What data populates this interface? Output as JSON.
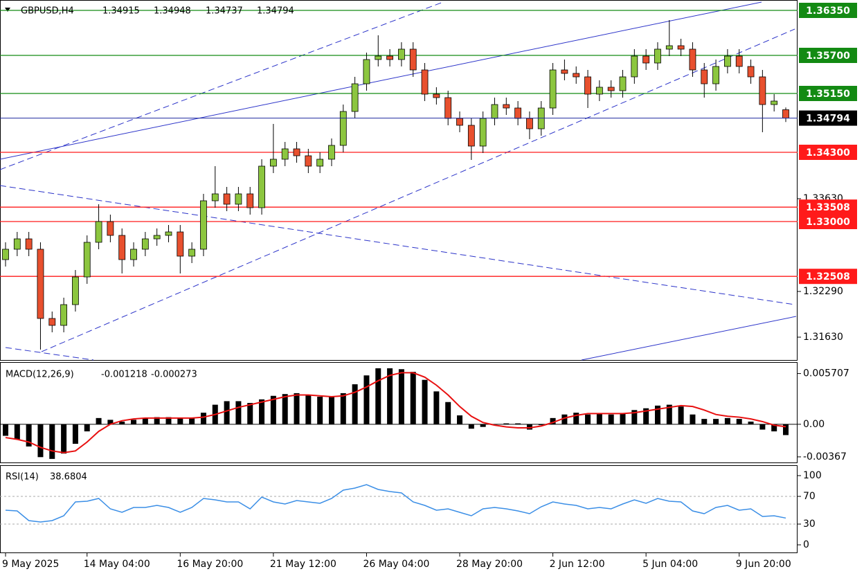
{
  "chart_data": [
    {
      "type": "candlestick",
      "title": "GBPUSD,H4",
      "categories": [
        "9 May 2025",
        null,
        null,
        null,
        null,
        null,
        null,
        "14 May 04:00",
        null,
        null,
        null,
        null,
        null,
        null,
        null,
        "16 May 20:00",
        null,
        null,
        null,
        null,
        null,
        null,
        null,
        "21 May 12:00",
        null,
        null,
        null,
        null,
        null,
        null,
        null,
        "26 May 04:00",
        null,
        null,
        null,
        null,
        null,
        null,
        null,
        "28 May 20:00",
        null,
        null,
        null,
        null,
        null,
        null,
        null,
        "2 Jun 12:00",
        null,
        null,
        null,
        null,
        null,
        null,
        null,
        "5 Jun 04:00",
        null,
        null,
        null,
        null,
        null,
        null,
        null,
        "9 Jun 20:00",
        null,
        null,
        null,
        null
      ],
      "open": [
        1.3275,
        1.329,
        1.3305,
        1.329,
        1.319,
        1.318,
        1.321,
        1.325,
        1.33,
        1.333,
        1.331,
        1.3275,
        1.329,
        1.3305,
        1.331,
        1.3315,
        1.328,
        1.329,
        1.336,
        1.337,
        1.3355,
        1.337,
        1.335,
        1.341,
        1.342,
        1.3435,
        1.3425,
        1.341,
        1.342,
        1.344,
        1.3489,
        1.3529,
        1.3564,
        1.3569,
        1.3564,
        1.3579,
        1.3549,
        1.3514,
        1.3509,
        1.3479,
        1.3469,
        1.3439,
        1.3479,
        1.3499,
        1.3494,
        1.3479,
        1.3464,
        1.3494,
        1.3549,
        1.3544,
        1.3539,
        1.3514,
        1.3524,
        1.3519,
        1.3539,
        1.3569,
        1.3559,
        1.3579,
        1.3584,
        1.3579,
        1.3549,
        1.3529,
        1.3554,
        1.3569,
        1.3554,
        1.3539,
        1.3499,
        1.34915
      ],
      "high": [
        1.33,
        1.3315,
        1.3315,
        1.33,
        1.32,
        1.322,
        1.326,
        1.331,
        1.3355,
        1.334,
        1.332,
        1.33,
        1.3315,
        1.332,
        1.3325,
        1.3325,
        1.33,
        1.337,
        1.341,
        1.338,
        1.338,
        1.338,
        1.342,
        1.3471,
        1.3445,
        1.3445,
        1.3435,
        1.343,
        1.345,
        1.3499,
        1.3539,
        1.3574,
        1.3599,
        1.3579,
        1.3589,
        1.3589,
        1.3559,
        1.3524,
        1.3519,
        1.3489,
        1.3479,
        1.3489,
        1.3509,
        1.3509,
        1.3504,
        1.3489,
        1.3504,
        1.3559,
        1.3564,
        1.3554,
        1.3549,
        1.3534,
        1.3534,
        1.3549,
        1.3579,
        1.3579,
        1.3589,
        1.3621,
        1.3594,
        1.3589,
        1.3559,
        1.3564,
        1.3579,
        1.3579,
        1.3564,
        1.3549,
        1.3514,
        1.34948
      ],
      "low": [
        1.3265,
        1.328,
        1.328,
        1.3145,
        1.317,
        1.317,
        1.32,
        1.324,
        1.329,
        1.33,
        1.3255,
        1.3265,
        1.328,
        1.3295,
        1.33,
        1.3255,
        1.327,
        1.328,
        1.335,
        1.3345,
        1.3345,
        1.334,
        1.334,
        1.34,
        1.341,
        1.3415,
        1.34,
        1.34,
        1.341,
        1.343,
        1.3479,
        1.3519,
        1.3554,
        1.3554,
        1.3554,
        1.3539,
        1.3504,
        1.3499,
        1.3469,
        1.3459,
        1.3419,
        1.3429,
        1.3469,
        1.3484,
        1.3469,
        1.3449,
        1.3454,
        1.3484,
        1.3534,
        1.3529,
        1.3494,
        1.3504,
        1.3509,
        1.3509,
        1.3529,
        1.3549,
        1.3549,
        1.3569,
        1.3569,
        1.3539,
        1.3509,
        1.3519,
        1.3544,
        1.3544,
        1.3529,
        1.3459,
        1.3489,
        1.34737
      ],
      "close": [
        1.329,
        1.3305,
        1.329,
        1.319,
        1.318,
        1.321,
        1.325,
        1.33,
        1.333,
        1.331,
        1.3275,
        1.329,
        1.3305,
        1.331,
        1.3315,
        1.328,
        1.329,
        1.336,
        1.337,
        1.3355,
        1.337,
        1.335,
        1.341,
        1.342,
        1.3435,
        1.3425,
        1.341,
        1.342,
        1.344,
        1.3489,
        1.3529,
        1.3564,
        1.3569,
        1.3564,
        1.3579,
        1.3549,
        1.3514,
        1.3509,
        1.3479,
        1.3469,
        1.3439,
        1.3479,
        1.3499,
        1.3494,
        1.3479,
        1.3464,
        1.3494,
        1.3549,
        1.3544,
        1.3539,
        1.3514,
        1.3524,
        1.3519,
        1.3539,
        1.3569,
        1.3559,
        1.3579,
        1.3584,
        1.3579,
        1.3549,
        1.3529,
        1.3554,
        1.3569,
        1.3554,
        1.3539,
        1.3499,
        1.3504,
        1.34794
      ],
      "up_color": "#8cc63f",
      "down_color": "#e8502e",
      "price_line_color": "#1f2a9e",
      "ylim": [
        1.313,
        1.365
      ],
      "yticks": [
        {
          "value": 1.3363,
          "label": "1.33630"
        },
        {
          "value": 1.3229,
          "label": "1.32290"
        },
        {
          "value": 1.3163,
          "label": "1.31630"
        }
      ],
      "levels": [
        {
          "value": 1.3635,
          "label": "1.36350",
          "color": "#138a13"
        },
        {
          "value": 1.357,
          "label": "1.35700",
          "color": "#138a13"
        },
        {
          "value": 1.3515,
          "label": "1.35150",
          "color": "#138a13"
        },
        {
          "value": 1.343,
          "label": "1.34300",
          "color": "#ff1a1a"
        },
        {
          "value": 1.33508,
          "color": "#ff1a1a"
        },
        {
          "value": 1.333,
          "label": "1.33000",
          "color": "#ff1a1a"
        },
        {
          "value": 1.32508,
          "color": "#ff1a1a"
        }
      ]
    },
    {
      "type": "macd",
      "title": "MACD(12,26,9)",
      "series": [
        {
          "color": "#000000",
          "values": [
            -0.0013,
            -0.0017,
            -0.0025,
            -0.0037,
            -0.0039,
            -0.0033,
            -0.0022,
            -0.0008,
            0.0007,
            0.0005,
            0.0003,
            0.0005,
            0.0007,
            0.0008,
            0.0008,
            0.0007,
            0.0007,
            0.0013,
            0.0022,
            0.0026,
            0.0026,
            0.0024,
            0.0028,
            0.0032,
            0.0034,
            0.0035,
            0.0033,
            0.0031,
            0.0031,
            0.0035,
            0.0045,
            0.0055,
            0.0063,
            0.0063,
            0.0062,
            0.0059,
            0.005,
            0.0037,
            0.0025,
            0.001,
            -0.0005,
            -0.0003,
            0.0,
            0.0001,
            0.0001,
            -0.0006,
            -0.0001,
            0.0007,
            0.0011,
            0.0013,
            0.0011,
            0.0012,
            0.0011,
            0.0012,
            0.0016,
            0.0018,
            0.0021,
            0.0022,
            0.002,
            0.0011,
            0.0006,
            0.0006,
            0.0007,
            0.0006,
            0.0003,
            -0.0006,
            -0.0008,
            -0.001218
          ]
        },
        {
          "color": "#e81010",
          "values": [
            -0.0015,
            -0.0017,
            -0.002,
            -0.0026,
            -0.003,
            -0.0032,
            -0.003,
            -0.002,
            -0.0008,
            0.0,
            0.0004,
            0.0006,
            0.0007,
            0.0007,
            0.0007,
            0.0007,
            0.0007,
            0.0008,
            0.0011,
            0.0015,
            0.0019,
            0.0022,
            0.0025,
            0.0028,
            0.0031,
            0.0033,
            0.0033,
            0.0032,
            0.0031,
            0.0032,
            0.0036,
            0.0042,
            0.0049,
            0.0055,
            0.0058,
            0.0058,
            0.0053,
            0.0044,
            0.0033,
            0.002,
            0.0009,
            0.0002,
            -0.0001,
            -0.0003,
            -0.0004,
            -0.0004,
            -0.0002,
            0.0002,
            0.0007,
            0.001,
            0.0012,
            0.0012,
            0.0012,
            0.0012,
            0.0013,
            0.0015,
            0.0017,
            0.0019,
            0.0021,
            0.002,
            0.0016,
            0.0011,
            0.0009,
            0.0008,
            0.0006,
            0.0003,
            -0.0001,
            -0.000273
          ]
        }
      ],
      "ylim": [
        -0.0043,
        0.007
      ],
      "yticks": [
        0.005707,
        {
          "value": 0,
          "label": "0.00"
        },
        -0.00367
      ]
    },
    {
      "type": "line",
      "title": "RSI(14)",
      "series": [
        {
          "color": "#3a8ee6",
          "values": [
            50,
            49,
            35,
            33,
            35,
            42,
            62,
            63,
            67,
            52,
            47,
            54,
            54,
            57,
            54,
            47,
            54,
            67,
            65,
            62,
            62,
            52,
            69,
            62,
            59,
            64,
            62,
            60,
            67,
            79,
            82,
            87,
            80,
            77,
            75,
            62,
            57,
            50,
            52,
            47,
            42,
            52,
            54,
            52,
            49,
            45,
            55,
            62,
            59,
            57,
            52,
            54,
            52,
            59,
            65,
            60,
            67,
            63,
            62,
            49,
            45,
            54,
            57,
            50,
            52,
            41,
            42,
            38.6804
          ]
        }
      ],
      "ylim": [
        -11,
        114
      ],
      "yticks": [
        100,
        70,
        30,
        0
      ],
      "levels": [
        70,
        30
      ]
    }
  ]
}
